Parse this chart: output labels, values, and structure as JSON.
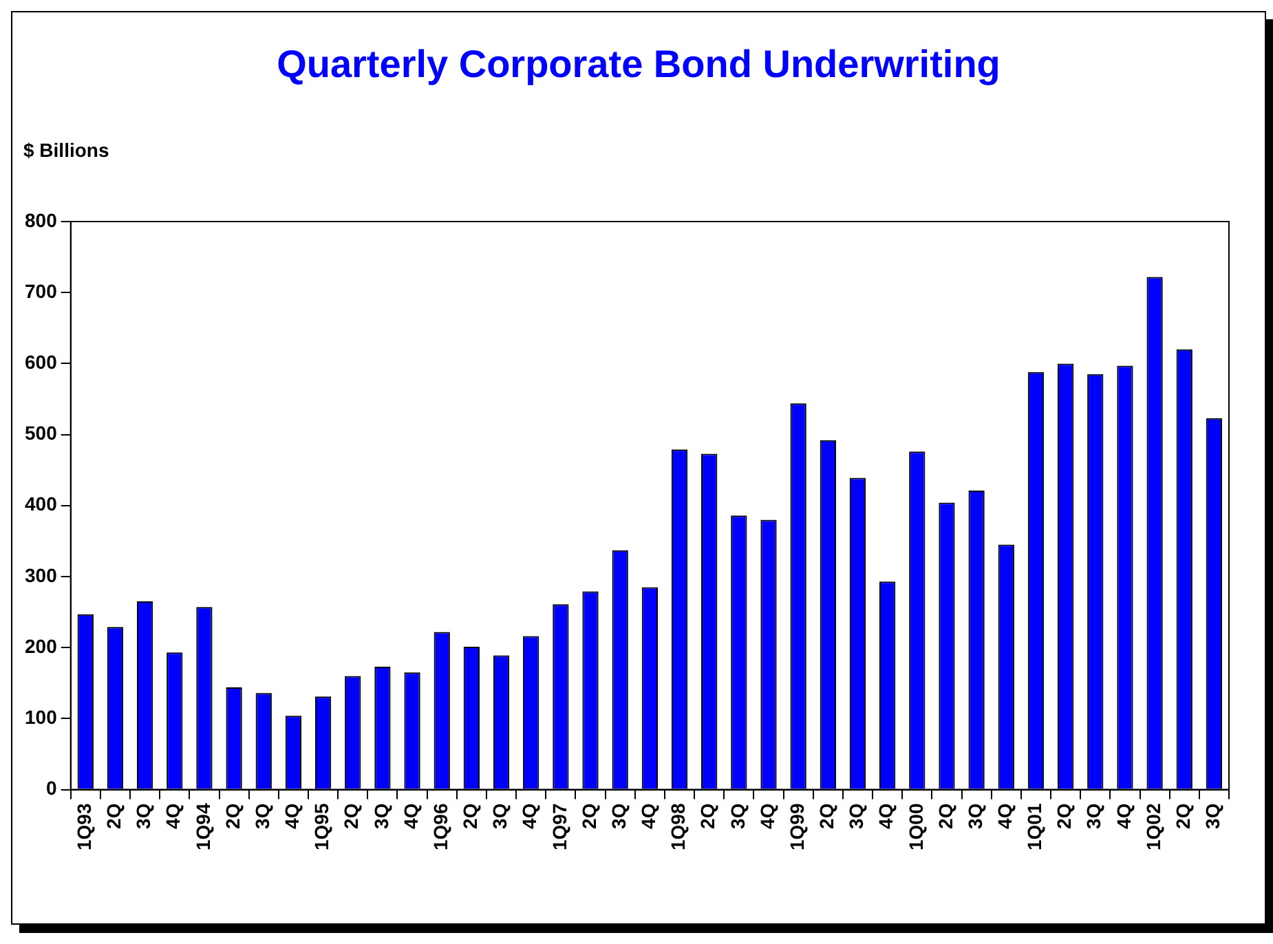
{
  "chart_data": {
    "type": "bar",
    "title": "Quarterly Corporate Bond Underwriting",
    "ylabel": "$ Billions",
    "categories": [
      "1Q93",
      "2Q",
      "3Q",
      "4Q",
      "1Q94",
      "2Q",
      "3Q",
      "4Q",
      "1Q95",
      "2Q",
      "3Q",
      "4Q",
      "1Q96",
      "2Q",
      "3Q",
      "4Q",
      "1Q97",
      "2Q",
      "3Q",
      "4Q",
      "1Q98",
      "2Q",
      "3Q",
      "4Q",
      "1Q99",
      "2Q",
      "3Q",
      "4Q",
      "1Q00",
      "2Q",
      "3Q",
      "4Q",
      "1Q01",
      "2Q",
      "3Q",
      "4Q",
      "1Q02",
      "2Q",
      "3Q"
    ],
    "values": [
      247,
      229,
      265,
      193,
      257,
      144,
      136,
      104,
      131,
      160,
      173,
      165,
      222,
      201,
      189,
      216,
      261,
      279,
      337,
      285,
      479,
      473,
      386,
      380,
      544,
      492,
      439,
      293,
      476,
      404,
      421,
      345,
      588,
      600,
      585,
      597,
      722,
      620,
      523
    ],
    "color": "#0000ff",
    "ylim": [
      0,
      800
    ],
    "yticks": [
      0,
      100,
      200,
      300,
      400,
      500,
      600,
      700,
      800
    ],
    "grid": false,
    "legend": false
  }
}
